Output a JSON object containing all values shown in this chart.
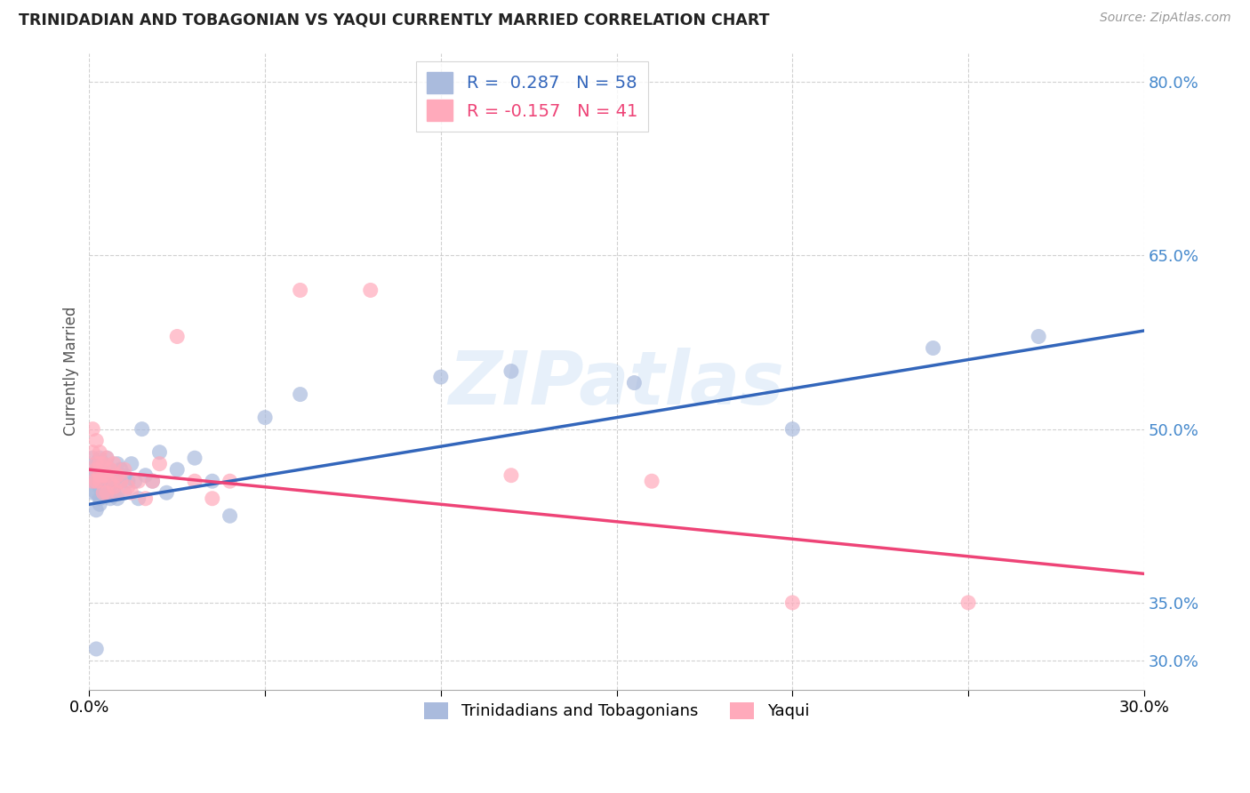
{
  "title": "TRINIDADIAN AND TOBAGONIAN VS YAQUI CURRENTLY MARRIED CORRELATION CHART",
  "source": "Source: ZipAtlas.com",
  "ylabel": "Currently Married",
  "watermark": "ZIPatlas",
  "legend1_label": "R =  0.287   N = 58",
  "legend2_label": "R = -0.157   N = 41",
  "legend_bottom1": "Trinidadians and Tobagonians",
  "legend_bottom2": "Yaqui",
  "blue_dot_color": "#AABBDD",
  "pink_dot_color": "#FFAABB",
  "blue_line_color": "#3366BB",
  "pink_line_color": "#EE4477",
  "axis_tick_color": "#4488CC",
  "xlim": [
    0.0,
    0.3
  ],
  "ylim": [
    0.275,
    0.825
  ],
  "ytick_vals": [
    0.3,
    0.35,
    0.5,
    0.65,
    0.8
  ],
  "xtick_vals": [
    0.0,
    0.05,
    0.1,
    0.15,
    0.2,
    0.25,
    0.3
  ],
  "blue_x": [
    0.001,
    0.001,
    0.001,
    0.001,
    0.002,
    0.002,
    0.002,
    0.002,
    0.002,
    0.003,
    0.003,
    0.003,
    0.003,
    0.003,
    0.003,
    0.004,
    0.004,
    0.004,
    0.004,
    0.005,
    0.005,
    0.005,
    0.005,
    0.006,
    0.006,
    0.006,
    0.007,
    0.007,
    0.007,
    0.008,
    0.008,
    0.008,
    0.009,
    0.009,
    0.01,
    0.01,
    0.011,
    0.012,
    0.013,
    0.014,
    0.015,
    0.016,
    0.018,
    0.02,
    0.022,
    0.025,
    0.03,
    0.035,
    0.04,
    0.05,
    0.06,
    0.1,
    0.12,
    0.155,
    0.2,
    0.24,
    0.27,
    0.002
  ],
  "blue_y": [
    0.475,
    0.455,
    0.445,
    0.46,
    0.47,
    0.465,
    0.455,
    0.445,
    0.43,
    0.465,
    0.46,
    0.45,
    0.475,
    0.44,
    0.435,
    0.46,
    0.455,
    0.445,
    0.47,
    0.46,
    0.455,
    0.445,
    0.475,
    0.45,
    0.465,
    0.44,
    0.46,
    0.455,
    0.445,
    0.47,
    0.46,
    0.44,
    0.455,
    0.465,
    0.46,
    0.445,
    0.455,
    0.47,
    0.455,
    0.44,
    0.5,
    0.46,
    0.455,
    0.48,
    0.445,
    0.465,
    0.475,
    0.455,
    0.425,
    0.51,
    0.53,
    0.545,
    0.55,
    0.54,
    0.5,
    0.57,
    0.58,
    0.31
  ],
  "pink_x": [
    0.001,
    0.001,
    0.001,
    0.002,
    0.002,
    0.002,
    0.002,
    0.003,
    0.003,
    0.003,
    0.003,
    0.004,
    0.004,
    0.004,
    0.005,
    0.005,
    0.005,
    0.006,
    0.006,
    0.007,
    0.007,
    0.008,
    0.008,
    0.009,
    0.01,
    0.011,
    0.012,
    0.014,
    0.016,
    0.018,
    0.02,
    0.025,
    0.03,
    0.035,
    0.04,
    0.06,
    0.08,
    0.12,
    0.16,
    0.2,
    0.25
  ],
  "pink_y": [
    0.5,
    0.48,
    0.455,
    0.49,
    0.47,
    0.465,
    0.455,
    0.48,
    0.47,
    0.46,
    0.455,
    0.47,
    0.46,
    0.445,
    0.475,
    0.46,
    0.445,
    0.455,
    0.465,
    0.47,
    0.45,
    0.46,
    0.445,
    0.455,
    0.465,
    0.45,
    0.445,
    0.455,
    0.44,
    0.455,
    0.47,
    0.58,
    0.455,
    0.44,
    0.455,
    0.62,
    0.62,
    0.46,
    0.455,
    0.35,
    0.35
  ],
  "blue_trend_x0": 0.0,
  "blue_trend_y0": 0.435,
  "blue_trend_x1": 0.3,
  "blue_trend_y1": 0.585,
  "pink_trend_x0": 0.0,
  "pink_trend_y0": 0.465,
  "pink_trend_x1": 0.3,
  "pink_trend_y1": 0.375
}
